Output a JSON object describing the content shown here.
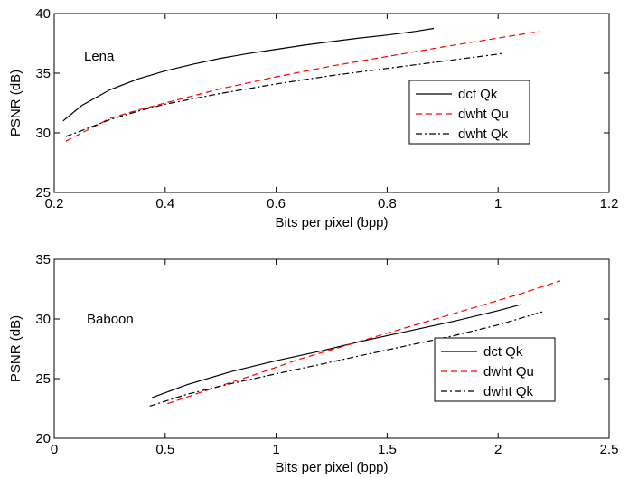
{
  "chart_data": [
    {
      "type": "line",
      "annotation": "Lena",
      "xlabel": "Bits per pixel (bpp)",
      "ylabel": "PSNR (dB)",
      "xlim": [
        0.2,
        1.2
      ],
      "ylim": [
        25,
        40
      ],
      "xticks": [
        "0.2",
        "0.4",
        "0.6",
        "0.8",
        "1",
        "1.2"
      ],
      "yticks": [
        "25",
        "30",
        "35",
        "40"
      ],
      "grid": false,
      "legend_position": "right",
      "series": [
        {
          "name": "dct Qk",
          "color": "#000000",
          "style": "solid",
          "x": [
            0.216,
            0.25,
            0.3,
            0.35,
            0.4,
            0.45,
            0.5,
            0.55,
            0.6,
            0.65,
            0.7,
            0.75,
            0.8,
            0.85,
            0.884
          ],
          "y": [
            31.0,
            32.3,
            33.6,
            34.5,
            35.2,
            35.75,
            36.25,
            36.65,
            37.0,
            37.35,
            37.65,
            37.95,
            38.2,
            38.5,
            38.75
          ]
        },
        {
          "name": "dwht Qu",
          "color": "#ff0000",
          "style": "dashed",
          "x": [
            0.221,
            0.25,
            0.3,
            0.35,
            0.4,
            0.5,
            0.6,
            0.7,
            0.8,
            0.9,
            1.0,
            1.075
          ],
          "y": [
            29.3,
            30.0,
            31.2,
            31.9,
            32.5,
            33.7,
            34.7,
            35.6,
            36.4,
            37.2,
            37.95,
            38.5
          ]
        },
        {
          "name": "dwht Qk",
          "color": "#000000",
          "style": "dashdot",
          "x": [
            0.221,
            0.25,
            0.3,
            0.35,
            0.4,
            0.5,
            0.6,
            0.7,
            0.8,
            0.9,
            1.0,
            1.01
          ],
          "y": [
            29.7,
            30.2,
            31.1,
            31.8,
            32.4,
            33.3,
            34.1,
            34.8,
            35.4,
            36.0,
            36.6,
            36.7
          ]
        }
      ]
    },
    {
      "type": "line",
      "annotation": "Baboon",
      "xlabel": "Bits per pixel (bpp)",
      "ylabel": "PSNR (dB)",
      "xlim": [
        0,
        2.5
      ],
      "ylim": [
        20,
        35
      ],
      "xticks": [
        "0",
        "0.5",
        "1",
        "1.5",
        "2",
        "2.5"
      ],
      "yticks": [
        "20",
        "25",
        "30",
        "35"
      ],
      "grid": false,
      "legend_position": "right",
      "series": [
        {
          "name": "dct Qk",
          "color": "#000000",
          "style": "solid",
          "x": [
            0.44,
            0.6,
            0.8,
            1.0,
            1.2,
            1.4,
            1.6,
            1.8,
            2.0,
            2.1
          ],
          "y": [
            23.4,
            24.5,
            25.6,
            26.5,
            27.3,
            28.2,
            29.0,
            29.8,
            30.7,
            31.2
          ]
        },
        {
          "name": "dwht Qu",
          "color": "#ff0000",
          "style": "dashed",
          "x": [
            0.51,
            0.7,
            0.9,
            1.1,
            1.3,
            1.5,
            1.7,
            1.9,
            2.1,
            2.28
          ],
          "y": [
            22.9,
            24.1,
            25.3,
            26.6,
            27.7,
            28.8,
            29.9,
            31.0,
            32.1,
            33.2
          ]
        },
        {
          "name": "dwht Qk",
          "color": "#000000",
          "style": "dashdot",
          "x": [
            0.43,
            0.6,
            0.8,
            1.0,
            1.2,
            1.4,
            1.6,
            1.8,
            2.0,
            2.2
          ],
          "y": [
            22.7,
            23.7,
            24.6,
            25.4,
            26.2,
            27.0,
            27.8,
            28.6,
            29.5,
            30.6
          ]
        }
      ]
    }
  ]
}
